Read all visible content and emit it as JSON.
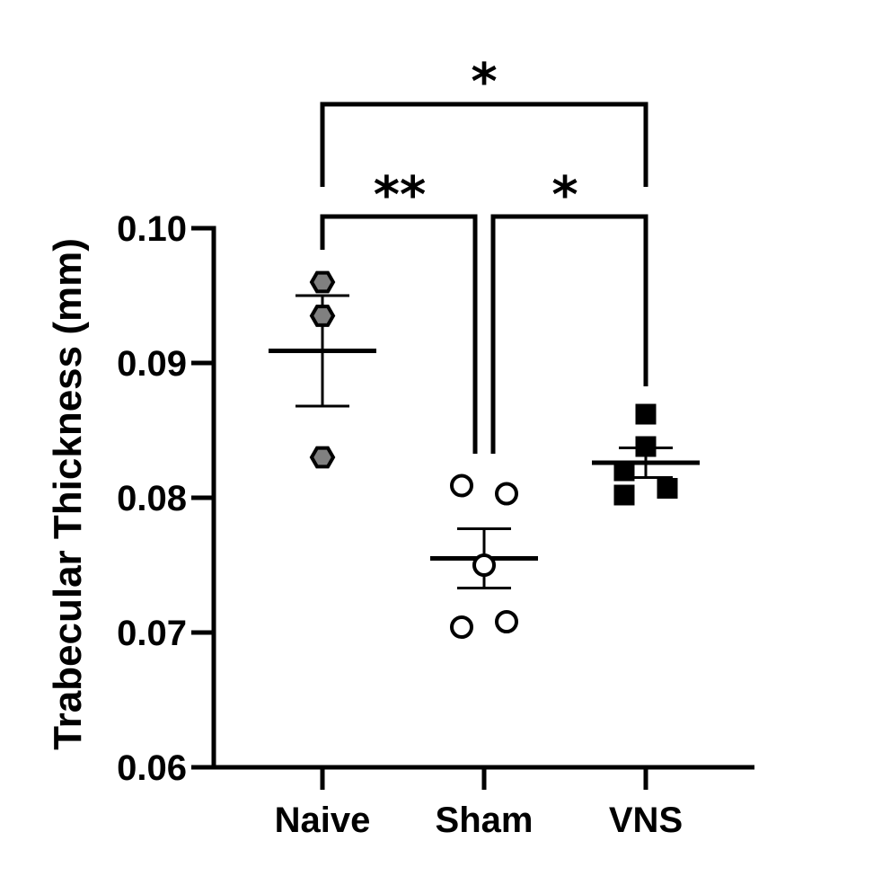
{
  "chart_data": {
    "type": "scatter",
    "ylabel": "Trabecular Thickness (mm)",
    "xlabel": "",
    "ylim": [
      0.06,
      0.1
    ],
    "yticks": [
      0.06,
      0.07,
      0.08,
      0.09,
      0.1
    ],
    "ytick_labels": [
      "0.06",
      "0.07",
      "0.08",
      "0.09",
      "0.10"
    ],
    "categories": [
      "Naive",
      "Sham",
      "VNS"
    ],
    "grid": false,
    "groups": [
      {
        "category": "Naive",
        "marker": "hexagon",
        "fill": "#808080",
        "points": [
          0.096,
          0.0935,
          0.083
        ],
        "mean": 0.0909,
        "sem": 0.0041
      },
      {
        "category": "Sham",
        "marker": "open-circle",
        "fill": "#ffffff",
        "points": [
          0.0809,
          0.0803,
          0.075,
          0.0704,
          0.0708
        ],
        "mean": 0.0755,
        "sem": 0.0022
      },
      {
        "category": "VNS",
        "marker": "square",
        "fill": "#000000",
        "points": [
          0.0862,
          0.0838,
          0.082,
          0.0807,
          0.0802
        ],
        "mean": 0.0826,
        "sem": 0.0011
      }
    ],
    "significance": [
      {
        "from": "Naive",
        "to": "VNS",
        "label": "*"
      },
      {
        "from": "Naive",
        "to": "Sham",
        "label": "**"
      },
      {
        "from": "Sham",
        "to": "VNS",
        "label": "*"
      }
    ]
  }
}
